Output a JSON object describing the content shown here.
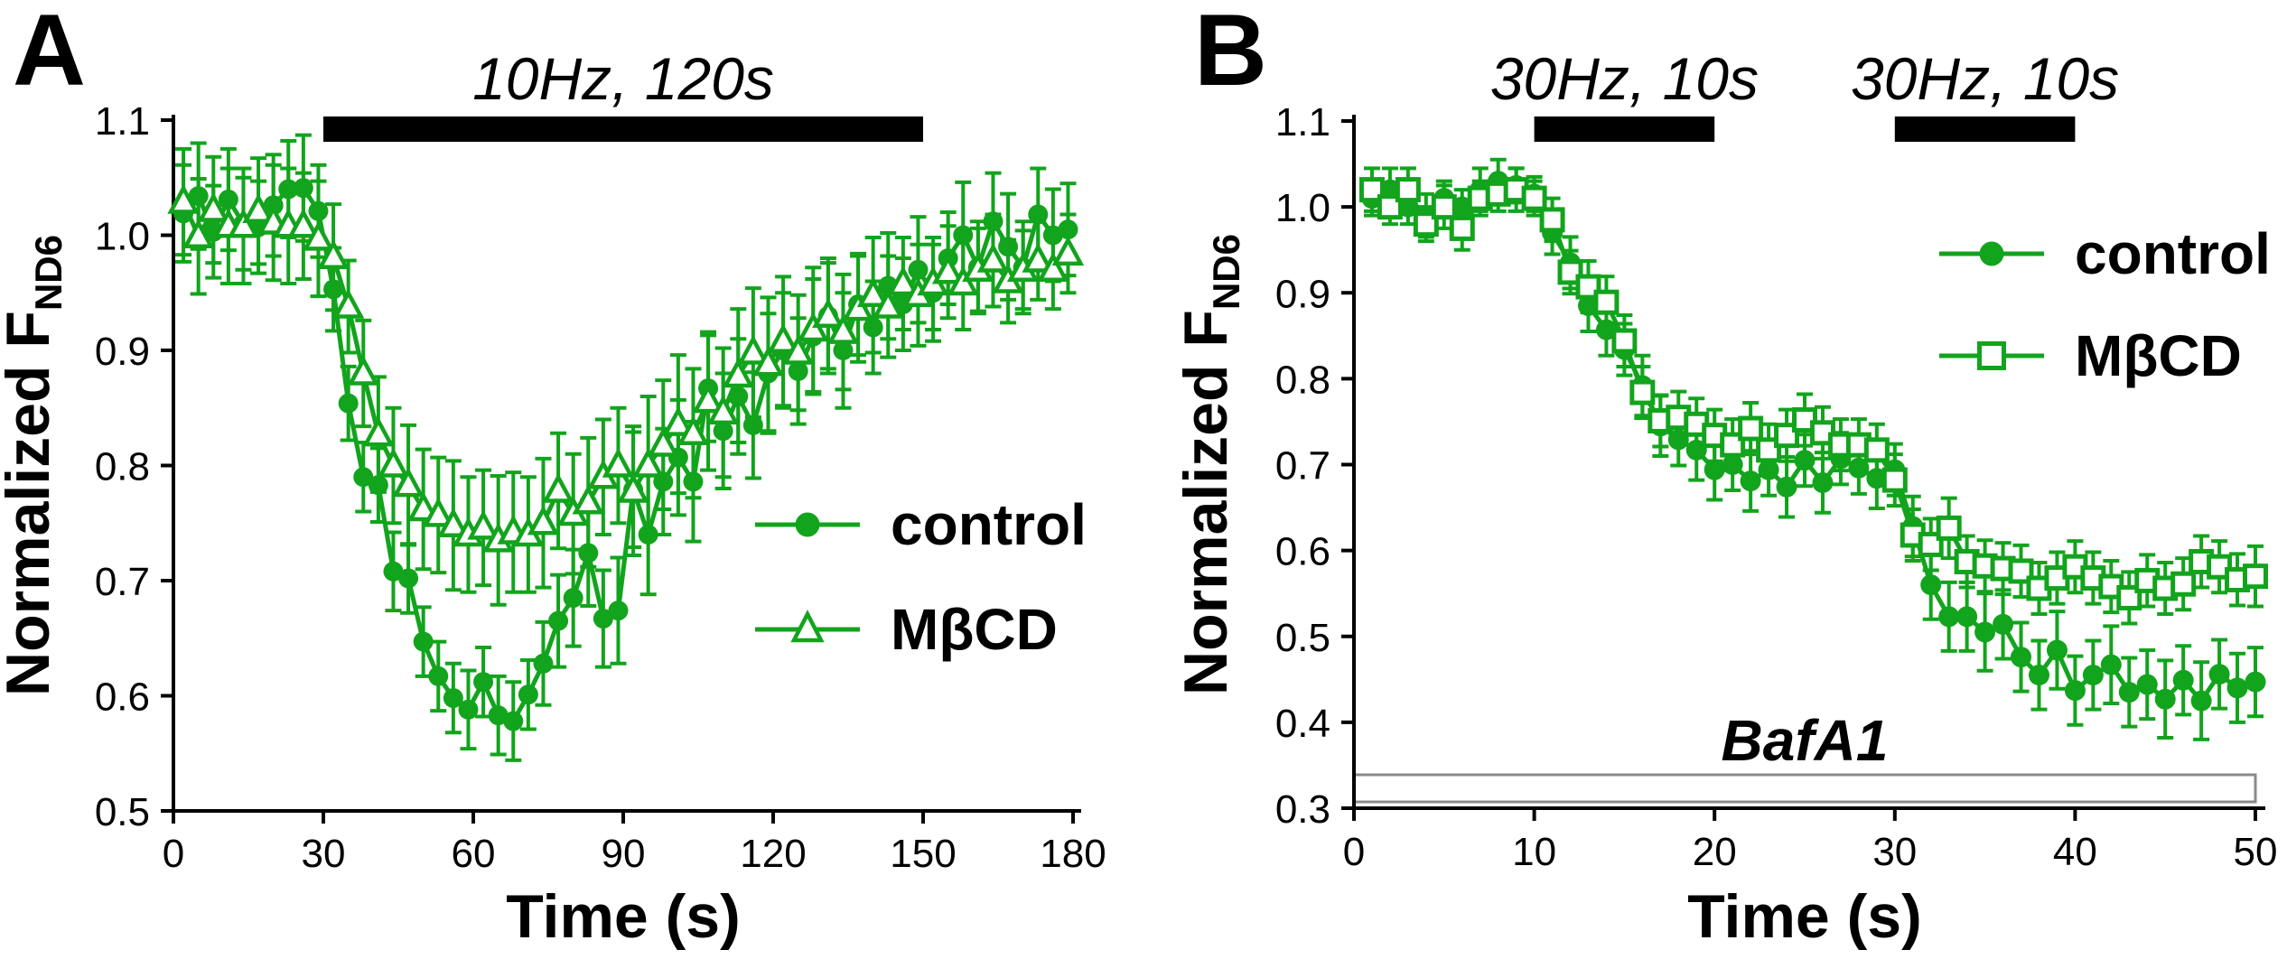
{
  "figure": {
    "background": "#ffffff"
  },
  "colors": {
    "series_green": "#12A41C",
    "axis_black": "#000000",
    "stim_bar_black": "#000000",
    "drug_bar_gray": "#8a8a8a",
    "text_black": "#000000"
  },
  "chart_data": {
    "type": "line",
    "panels": [
      {
        "id": "A",
        "letter": "A",
        "xlabel": "Time (s)",
        "ylabel_main": "Normalized F",
        "ylabel_sub": "ND6",
        "x_axis": {
          "min": 0,
          "max": 180,
          "ticks": [
            0,
            30,
            60,
            90,
            120,
            150,
            180
          ]
        },
        "y_axis": {
          "min": 0.5,
          "max": 1.1,
          "ticks": [
            1.1,
            1.0,
            0.9,
            0.8,
            0.7,
            0.6,
            0.5
          ]
        },
        "stim_bars": [
          {
            "t0": 30,
            "t1": 150,
            "label": "10Hz, 120s"
          }
        ],
        "legend": {
          "rows": [
            {
              "label": "control",
              "marker": "filled-circle"
            },
            {
              "label": "MβCD",
              "marker": "open-triangle"
            }
          ]
        },
        "series": [
          {
            "name": "control",
            "marker": "filled-circle",
            "x": [
              2,
              5,
              8,
              11,
              14,
              17,
              20,
              23,
              26,
              29,
              32,
              35,
              38,
              41,
              44,
              47,
              50,
              53,
              56,
              59,
              62,
              65,
              68,
              71,
              74,
              77,
              80,
              83,
              86,
              89,
              92,
              95,
              98,
              101,
              104,
              107,
              110,
              113,
              116,
              119,
              122,
              125,
              128,
              131,
              134,
              137,
              140,
              143,
              146,
              149,
              152,
              155,
              158,
              161,
              164,
              167,
              170,
              173,
              176,
              179
            ],
            "y": [
              1.019,
              1.034,
              1.003,
              1.031,
              1.01,
              1.007,
              1.026,
              1.04,
              1.041,
              1.021,
              0.953,
              0.854,
              0.79,
              0.783,
              0.708,
              0.702,
              0.647,
              0.617,
              0.598,
              0.588,
              0.612,
              0.583,
              0.578,
              0.601,
              0.628,
              0.665,
              0.685,
              0.724,
              0.667,
              0.674,
              0.779,
              0.74,
              0.786,
              0.807,
              0.786,
              0.867,
              0.83,
              0.86,
              0.835,
              0.88,
              0.9,
              0.882,
              0.912,
              0.93,
              0.9,
              0.94,
              0.92,
              0.956,
              0.94,
              0.97,
              0.95,
              0.98,
              1.0,
              0.972,
              1.012,
              0.99,
              0.972,
              1.018,
              1.0,
              1.005
            ],
            "err": [
              0.042,
              0.046,
              0.04,
              0.044,
              0.04,
              0.04,
              0.044,
              0.042,
              0.046,
              0.04,
              0.036,
              0.032,
              0.03,
              0.032,
              0.034,
              0.03,
              0.03,
              0.03,
              0.03,
              0.034,
              0.03,
              0.034,
              0.034,
              0.03,
              0.036,
              0.04,
              0.042,
              0.046,
              0.042,
              0.046,
              0.05,
              0.052,
              0.046,
              0.05,
              0.052,
              0.046,
              0.05,
              0.05,
              0.046,
              0.052,
              0.05,
              0.046,
              0.05,
              0.046,
              0.05,
              0.044,
              0.04,
              0.046,
              0.04,
              0.046,
              0.042,
              0.04,
              0.046,
              0.04,
              0.042,
              0.046,
              0.04,
              0.04,
              0.04,
              0.04
            ]
          },
          {
            "name": "MβCD",
            "marker": "open-triangle",
            "x": [
              2,
              5,
              8,
              11,
              14,
              17,
              20,
              23,
              26,
              29,
              32,
              35,
              38,
              41,
              44,
              47,
              50,
              53,
              56,
              59,
              62,
              65,
              68,
              71,
              74,
              77,
              80,
              83,
              86,
              89,
              92,
              95,
              98,
              101,
              104,
              107,
              110,
              113,
              116,
              119,
              122,
              125,
              128,
              131,
              134,
              137,
              140,
              143,
              146,
              149,
              152,
              155,
              158,
              161,
              164,
              167,
              170,
              173,
              176,
              179
            ],
            "y": [
              1.029,
              0.999,
              1.022,
              1.008,
              1.008,
              1.021,
              1.011,
              1.008,
              1.008,
              0.997,
              0.981,
              0.938,
              0.88,
              0.827,
              0.8,
              0.783,
              0.762,
              0.757,
              0.748,
              0.74,
              0.746,
              0.735,
              0.742,
              0.74,
              0.75,
              0.778,
              0.758,
              0.768,
              0.79,
              0.8,
              0.778,
              0.8,
              0.818,
              0.836,
              0.828,
              0.856,
              0.846,
              0.878,
              0.898,
              0.888,
              0.908,
              0.898,
              0.918,
              0.93,
              0.916,
              0.936,
              0.948,
              0.938,
              0.958,
              0.948,
              0.958,
              0.968,
              0.958,
              0.97,
              0.978,
              0.96,
              0.97,
              0.978,
              0.97,
              0.984
            ],
            "err": [
              0.046,
              0.05,
              0.046,
              0.05,
              0.05,
              0.046,
              0.05,
              0.05,
              0.046,
              0.05,
              0.046,
              0.04,
              0.046,
              0.05,
              0.05,
              0.052,
              0.052,
              0.05,
              0.056,
              0.05,
              0.05,
              0.056,
              0.052,
              0.05,
              0.056,
              0.05,
              0.052,
              0.056,
              0.05,
              0.05,
              0.056,
              0.06,
              0.056,
              0.06,
              0.056,
              0.06,
              0.056,
              0.058,
              0.056,
              0.058,
              0.056,
              0.05,
              0.054,
              0.05,
              0.05,
              0.046,
              0.05,
              0.044,
              0.04,
              0.044,
              0.04,
              0.04,
              0.04,
              0.036,
              0.04,
              0.036,
              0.034,
              0.034,
              0.034,
              0.034
            ]
          }
        ]
      },
      {
        "id": "B",
        "letter": "B",
        "xlabel": "Time (s)",
        "ylabel_main": "Normalized F",
        "ylabel_sub": "ND6",
        "x_axis": {
          "min": 0,
          "max": 50,
          "ticks": [
            0,
            10,
            20,
            30,
            40,
            50
          ]
        },
        "y_axis": {
          "min": 0.3,
          "max": 1.1,
          "ticks": [
            1.1,
            1.0,
            0.9,
            0.8,
            0.7,
            0.6,
            0.5,
            0.4,
            0.3
          ]
        },
        "stim_bars": [
          {
            "t0": 10,
            "t1": 20,
            "label": "30Hz, 10s"
          },
          {
            "t0": 30,
            "t1": 40,
            "label": "30Hz, 10s"
          }
        ],
        "drug_bar": {
          "t0": 0,
          "t1": 50,
          "label": "BafA1"
        },
        "legend": {
          "rows": [
            {
              "label": "control",
              "marker": "filled-circle"
            },
            {
              "label": "MβCD",
              "marker": "open-square"
            }
          ]
        },
        "series": [
          {
            "name": "control",
            "marker": "filled-circle",
            "x": [
              1,
              2,
              3,
              4,
              5,
              6,
              7,
              8,
              9,
              10,
              11,
              12,
              13,
              14,
              15,
              16,
              17,
              18,
              19,
              20,
              21,
              22,
              23,
              24,
              25,
              26,
              27,
              28,
              29,
              30,
              31,
              32,
              33,
              34,
              35,
              36,
              37,
              38,
              39,
              40,
              41,
              42,
              43,
              44,
              45,
              46,
              47,
              48,
              49,
              50
            ],
            "y": [
              1.01,
              1.02,
              1.0,
              0.99,
              1.01,
              1.0,
              1.02,
              1.03,
              1.025,
              1.015,
              0.97,
              0.935,
              0.885,
              0.857,
              0.834,
              0.792,
              0.745,
              0.729,
              0.717,
              0.694,
              0.7,
              0.681,
              0.694,
              0.674,
              0.705,
              0.679,
              0.707,
              0.696,
              0.684,
              0.694,
              0.628,
              0.56,
              0.523,
              0.523,
              0.505,
              0.514,
              0.476,
              0.455,
              0.484,
              0.437,
              0.455,
              0.467,
              0.435,
              0.444,
              0.427,
              0.449,
              0.425,
              0.456,
              0.44,
              0.447
            ],
            "err": [
              0.02,
              0.025,
              0.02,
              0.025,
              0.02,
              0.02,
              0.025,
              0.025,
              0.02,
              0.02,
              0.025,
              0.03,
              0.03,
              0.03,
              0.03,
              0.035,
              0.035,
              0.03,
              0.035,
              0.035,
              0.03,
              0.035,
              0.03,
              0.035,
              0.03,
              0.035,
              0.03,
              0.03,
              0.035,
              0.03,
              0.035,
              0.04,
              0.04,
              0.04,
              0.045,
              0.04,
              0.04,
              0.04,
              0.045,
              0.04,
              0.04,
              0.045,
              0.04,
              0.04,
              0.045,
              0.04,
              0.045,
              0.04,
              0.04,
              0.04
            ]
          },
          {
            "name": "MβCD",
            "marker": "open-square",
            "x": [
              1,
              2,
              3,
              4,
              5,
              6,
              7,
              8,
              9,
              10,
              11,
              12,
              13,
              14,
              15,
              16,
              17,
              18,
              19,
              20,
              21,
              22,
              23,
              24,
              25,
              26,
              27,
              28,
              29,
              30,
              31,
              32,
              33,
              34,
              35,
              36,
              37,
              38,
              39,
              40,
              41,
              42,
              43,
              44,
              45,
              46,
              47,
              48,
              49,
              50
            ],
            "y": [
              1.02,
              1.0,
              1.02,
              0.98,
              1.0,
              0.975,
              1.01,
              1.015,
              1.02,
              1.01,
              0.985,
              0.924,
              0.907,
              0.889,
              0.844,
              0.784,
              0.751,
              0.755,
              0.747,
              0.734,
              0.723,
              0.742,
              0.717,
              0.734,
              0.752,
              0.737,
              0.723,
              0.723,
              0.717,
              0.682,
              0.618,
              0.607,
              0.626,
              0.587,
              0.582,
              0.579,
              0.576,
              0.556,
              0.568,
              0.581,
              0.568,
              0.558,
              0.545,
              0.565,
              0.556,
              0.561,
              0.587,
              0.581,
              0.566,
              0.57
            ],
            "err": [
              0.025,
              0.02,
              0.025,
              0.02,
              0.025,
              0.025,
              0.02,
              0.02,
              0.025,
              0.02,
              0.025,
              0.025,
              0.03,
              0.03,
              0.03,
              0.03,
              0.03,
              0.03,
              0.03,
              0.03,
              0.03,
              0.03,
              0.03,
              0.03,
              0.03,
              0.03,
              0.03,
              0.03,
              0.03,
              0.03,
              0.03,
              0.03,
              0.035,
              0.03,
              0.03,
              0.03,
              0.03,
              0.03,
              0.03,
              0.03,
              0.03,
              0.03,
              0.03,
              0.03,
              0.03,
              0.03,
              0.03,
              0.03,
              0.03,
              0.035
            ]
          }
        ]
      }
    ]
  }
}
